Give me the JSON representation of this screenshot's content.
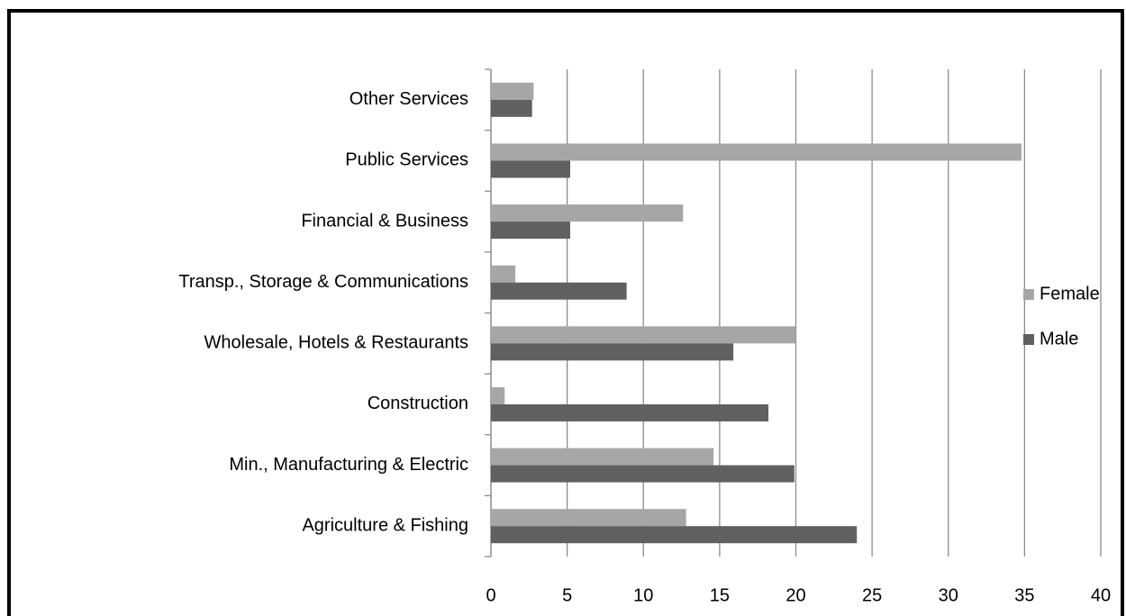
{
  "chart_data": {
    "type": "hbar",
    "categories": [
      "Agriculture & Fishing",
      "Min., Manufacturing & Electric",
      "Construction",
      "Wholesale, Hotels & Restaurants",
      "Transp., Storage & Communications",
      "Financial & Business",
      "Public Services",
      "Other Services"
    ],
    "series": [
      {
        "name": "Female",
        "color": "#a6a6a6",
        "values": [
          12.8,
          14.6,
          0.9,
          20.0,
          1.6,
          12.6,
          34.8,
          2.8
        ]
      },
      {
        "name": "Male",
        "color": "#606060",
        "values": [
          24.0,
          19.9,
          18.2,
          15.9,
          8.9,
          5.2,
          5.2,
          2.7
        ]
      }
    ],
    "xlim": [
      0,
      40
    ],
    "xticks": [
      0,
      5,
      10,
      15,
      20,
      25,
      30,
      35,
      40
    ],
    "grid": true,
    "legend": "right"
  }
}
